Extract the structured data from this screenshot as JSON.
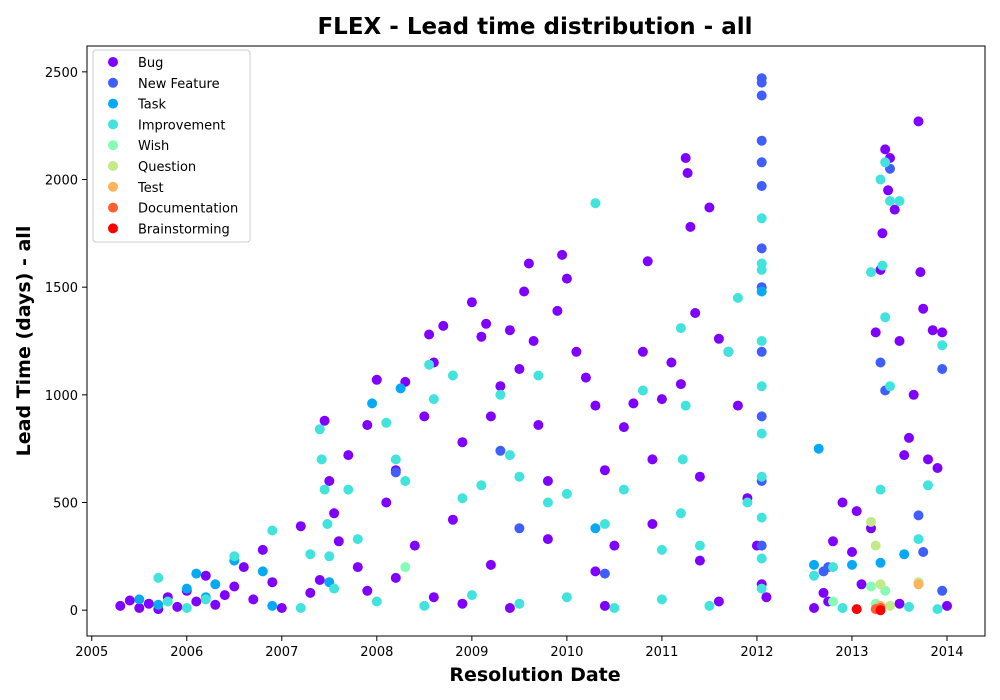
{
  "chart_data": {
    "type": "scatter",
    "title": "FLEX - Lead time distribution - all",
    "xlabel": "Resolution Date",
    "ylabel": "Lead Time (days) - all",
    "xlim": [
      2004.95,
      2014.4
    ],
    "ylim": [
      -120,
      2620
    ],
    "xticks": [
      2005,
      2006,
      2007,
      2008,
      2009,
      2010,
      2011,
      2012,
      2013,
      2014
    ],
    "yticks": [
      0,
      500,
      1000,
      1500,
      2000,
      2500
    ],
    "grid": false,
    "legend": "top-left",
    "series": [
      {
        "name": "Bug",
        "color": "#7f00ff",
        "points": [
          [
            2005.3,
            20
          ],
          [
            2005.4,
            45
          ],
          [
            2005.5,
            10
          ],
          [
            2005.6,
            30
          ],
          [
            2005.7,
            5
          ],
          [
            2005.8,
            60
          ],
          [
            2005.9,
            15
          ],
          [
            2006.0,
            90
          ],
          [
            2006.1,
            40
          ],
          [
            2006.2,
            160
          ],
          [
            2006.3,
            25
          ],
          [
            2006.4,
            70
          ],
          [
            2006.5,
            110
          ],
          [
            2006.6,
            200
          ],
          [
            2006.7,
            50
          ],
          [
            2006.8,
            280
          ],
          [
            2006.9,
            130
          ],
          [
            2007.0,
            10
          ],
          [
            2007.2,
            390
          ],
          [
            2007.3,
            80
          ],
          [
            2007.4,
            140
          ],
          [
            2007.45,
            880
          ],
          [
            2007.5,
            600
          ],
          [
            2007.55,
            450
          ],
          [
            2007.6,
            320
          ],
          [
            2007.7,
            720
          ],
          [
            2007.8,
            200
          ],
          [
            2007.9,
            860
          ],
          [
            2008.0,
            1070
          ],
          [
            2008.1,
            500
          ],
          [
            2008.2,
            650
          ],
          [
            2008.3,
            1060
          ],
          [
            2008.4,
            300
          ],
          [
            2008.5,
            900
          ],
          [
            2008.55,
            1280
          ],
          [
            2008.6,
            1150
          ],
          [
            2008.7,
            1320
          ],
          [
            2008.8,
            420
          ],
          [
            2008.9,
            780
          ],
          [
            2009.0,
            1430
          ],
          [
            2009.1,
            1270
          ],
          [
            2009.15,
            1330
          ],
          [
            2009.2,
            900
          ],
          [
            2009.3,
            1040
          ],
          [
            2009.4,
            1300
          ],
          [
            2009.5,
            1120
          ],
          [
            2009.55,
            1480
          ],
          [
            2009.6,
            1610
          ],
          [
            2009.65,
            1250
          ],
          [
            2009.7,
            860
          ],
          [
            2009.8,
            600
          ],
          [
            2009.9,
            1390
          ],
          [
            2009.95,
            1650
          ],
          [
            2010.0,
            1540
          ],
          [
            2010.1,
            1200
          ],
          [
            2010.2,
            1080
          ],
          [
            2010.3,
            950
          ],
          [
            2010.4,
            650
          ],
          [
            2010.5,
            300
          ],
          [
            2010.6,
            850
          ],
          [
            2010.7,
            960
          ],
          [
            2010.8,
            1200
          ],
          [
            2010.85,
            1620
          ],
          [
            2010.9,
            700
          ],
          [
            2011.0,
            980
          ],
          [
            2011.1,
            1150
          ],
          [
            2011.2,
            1050
          ],
          [
            2011.25,
            2100
          ],
          [
            2011.27,
            2030
          ],
          [
            2011.3,
            1780
          ],
          [
            2011.35,
            1380
          ],
          [
            2011.4,
            620
          ],
          [
            2011.5,
            1870
          ],
          [
            2011.6,
            1260
          ],
          [
            2011.7,
            1200
          ],
          [
            2011.8,
            950
          ],
          [
            2011.9,
            520
          ],
          [
            2012.0,
            300
          ],
          [
            2012.05,
            120
          ],
          [
            2012.1,
            60
          ],
          [
            2012.6,
            10
          ],
          [
            2012.7,
            80
          ],
          [
            2012.8,
            320
          ],
          [
            2012.9,
            500
          ],
          [
            2013.0,
            270
          ],
          [
            2013.05,
            460
          ],
          [
            2013.1,
            120
          ],
          [
            2013.2,
            380
          ],
          [
            2013.25,
            1290
          ],
          [
            2013.3,
            1580
          ],
          [
            2013.32,
            1750
          ],
          [
            2013.35,
            2140
          ],
          [
            2013.38,
            1950
          ],
          [
            2013.4,
            2100
          ],
          [
            2013.45,
            1860
          ],
          [
            2013.5,
            1250
          ],
          [
            2013.55,
            720
          ],
          [
            2013.6,
            800
          ],
          [
            2013.65,
            1000
          ],
          [
            2013.7,
            2270
          ],
          [
            2013.72,
            1570
          ],
          [
            2013.75,
            1400
          ],
          [
            2013.8,
            700
          ],
          [
            2013.85,
            1300
          ],
          [
            2013.9,
            660
          ],
          [
            2013.95,
            1290
          ],
          [
            2014.0,
            20
          ],
          [
            2008.2,
            150
          ],
          [
            2008.6,
            60
          ],
          [
            2009.2,
            210
          ],
          [
            2009.8,
            330
          ],
          [
            2010.3,
            180
          ],
          [
            2010.9,
            400
          ],
          [
            2011.4,
            230
          ],
          [
            2007.9,
            90
          ],
          [
            2008.9,
            30
          ],
          [
            2009.4,
            10
          ],
          [
            2010.4,
            20
          ],
          [
            2011.6,
            40
          ],
          [
            2012.75,
            40
          ],
          [
            2013.5,
            30
          ]
        ]
      },
      {
        "name": "New Feature",
        "color": "#3f5efb",
        "points": [
          [
            2012.05,
            2470
          ],
          [
            2012.05,
            2450
          ],
          [
            2012.05,
            2390
          ],
          [
            2012.05,
            2180
          ],
          [
            2012.05,
            2080
          ],
          [
            2012.05,
            1970
          ],
          [
            2012.05,
            1680
          ],
          [
            2012.05,
            1500
          ],
          [
            2012.05,
            1200
          ],
          [
            2012.05,
            900
          ],
          [
            2012.05,
            600
          ],
          [
            2012.05,
            300
          ],
          [
            2013.3,
            1150
          ],
          [
            2013.35,
            1020
          ],
          [
            2013.4,
            2050
          ],
          [
            2013.7,
            440
          ],
          [
            2013.75,
            270
          ],
          [
            2013.95,
            1120
          ],
          [
            2013.95,
            90
          ],
          [
            2012.75,
            200
          ],
          [
            2012.7,
            180
          ],
          [
            2009.3,
            740
          ],
          [
            2009.5,
            380
          ],
          [
            2008.2,
            640
          ],
          [
            2010.4,
            170
          ]
        ]
      },
      {
        "name": "Task",
        "color": "#07a9f4",
        "points": [
          [
            2005.5,
            50
          ],
          [
            2005.7,
            25
          ],
          [
            2006.0,
            100
          ],
          [
            2006.1,
            170
          ],
          [
            2006.2,
            60
          ],
          [
            2006.3,
            120
          ],
          [
            2006.5,
            230
          ],
          [
            2006.8,
            180
          ],
          [
            2006.9,
            20
          ],
          [
            2007.95,
            960
          ],
          [
            2008.25,
            1030
          ],
          [
            2012.65,
            750
          ],
          [
            2012.6,
            210
          ],
          [
            2013.0,
            210
          ],
          [
            2013.3,
            220
          ],
          [
            2013.55,
            260
          ],
          [
            2012.05,
            1480
          ],
          [
            2010.3,
            380
          ],
          [
            2007.5,
            130
          ]
        ]
      },
      {
        "name": "Improvement",
        "color": "#42e3dd",
        "points": [
          [
            2005.7,
            150
          ],
          [
            2005.8,
            40
          ],
          [
            2006.0,
            10
          ],
          [
            2006.2,
            50
          ],
          [
            2006.5,
            250
          ],
          [
            2006.9,
            370
          ],
          [
            2007.2,
            10
          ],
          [
            2007.3,
            260
          ],
          [
            2007.4,
            840
          ],
          [
            2007.42,
            700
          ],
          [
            2007.45,
            560
          ],
          [
            2007.48,
            400
          ],
          [
            2007.5,
            250
          ],
          [
            2007.55,
            100
          ],
          [
            2007.7,
            560
          ],
          [
            2007.8,
            330
          ],
          [
            2008.1,
            870
          ],
          [
            2008.2,
            700
          ],
          [
            2008.3,
            600
          ],
          [
            2008.55,
            1140
          ],
          [
            2008.6,
            980
          ],
          [
            2008.8,
            1090
          ],
          [
            2008.9,
            520
          ],
          [
            2009.1,
            580
          ],
          [
            2009.3,
            1000
          ],
          [
            2009.4,
            720
          ],
          [
            2009.5,
            620
          ],
          [
            2009.7,
            1090
          ],
          [
            2009.8,
            500
          ],
          [
            2010.0,
            540
          ],
          [
            2010.3,
            1890
          ],
          [
            2010.4,
            400
          ],
          [
            2010.6,
            560
          ],
          [
            2010.8,
            1020
          ],
          [
            2011.0,
            280
          ],
          [
            2011.2,
            1310
          ],
          [
            2011.25,
            950
          ],
          [
            2011.22,
            700
          ],
          [
            2011.2,
            450
          ],
          [
            2011.4,
            300
          ],
          [
            2011.7,
            1200
          ],
          [
            2011.8,
            1450
          ],
          [
            2011.9,
            500
          ],
          [
            2012.05,
            1820
          ],
          [
            2012.05,
            1610
          ],
          [
            2012.05,
            1580
          ],
          [
            2012.05,
            1250
          ],
          [
            2012.05,
            1040
          ],
          [
            2012.05,
            820
          ],
          [
            2012.05,
            620
          ],
          [
            2012.05,
            430
          ],
          [
            2012.05,
            240
          ],
          [
            2012.05,
            100
          ],
          [
            2012.6,
            160
          ],
          [
            2012.8,
            200
          ],
          [
            2013.2,
            1570
          ],
          [
            2013.3,
            2000
          ],
          [
            2013.35,
            2080
          ],
          [
            2013.4,
            1900
          ],
          [
            2013.32,
            1600
          ],
          [
            2013.35,
            1360
          ],
          [
            2013.4,
            1040
          ],
          [
            2013.5,
            1900
          ],
          [
            2013.3,
            560
          ],
          [
            2013.7,
            330
          ],
          [
            2013.8,
            580
          ],
          [
            2013.95,
            1230
          ],
          [
            2008.0,
            40
          ],
          [
            2008.5,
            20
          ],
          [
            2009.0,
            70
          ],
          [
            2009.5,
            30
          ],
          [
            2010.0,
            60
          ],
          [
            2010.5,
            10
          ],
          [
            2011.0,
            50
          ],
          [
            2011.5,
            20
          ],
          [
            2012.9,
            10
          ],
          [
            2013.6,
            15
          ],
          [
            2013.9,
            5
          ]
        ]
      },
      {
        "name": "Wish",
        "color": "#86fdb5",
        "points": [
          [
            2013.2,
            110
          ],
          [
            2013.35,
            90
          ],
          [
            2013.25,
            30
          ],
          [
            2008.3,
            200
          ],
          [
            2012.8,
            40
          ]
        ]
      },
      {
        "name": "Question",
        "color": "#c2eb87",
        "points": [
          [
            2013.2,
            410
          ],
          [
            2013.25,
            300
          ],
          [
            2013.4,
            20
          ],
          [
            2013.7,
            130
          ],
          [
            2013.3,
            120
          ]
        ]
      },
      {
        "name": "Test",
        "color": "#ffb35d",
        "points": [
          [
            2013.7,
            120
          ],
          [
            2013.3,
            20
          ]
        ]
      },
      {
        "name": "Documentation",
        "color": "#ff5d32",
        "points": [
          [
            2013.25,
            5
          ],
          [
            2013.3,
            10
          ]
        ]
      },
      {
        "name": "Brainstorming",
        "color": "#ff0000",
        "points": [
          [
            2013.05,
            5
          ],
          [
            2013.3,
            0
          ]
        ]
      }
    ]
  }
}
